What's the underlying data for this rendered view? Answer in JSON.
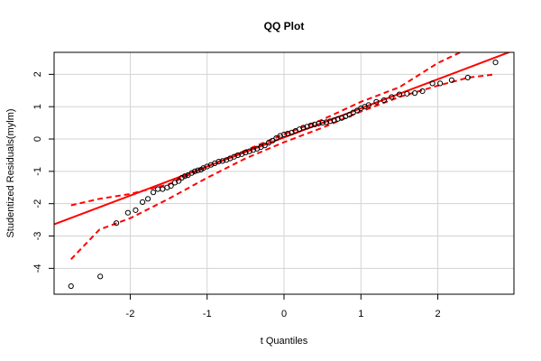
{
  "chart_data": {
    "type": "scatter",
    "title": "QQ Plot",
    "x_label": "t Quantiles",
    "y_label": "Studentized Residuals(mylm)",
    "xlim": [
      -2.99,
      2.99
    ],
    "ylim": [
      -4.8,
      2.68
    ],
    "xticks": [
      -2,
      -1,
      0,
      1,
      2
    ],
    "yticks": [
      -4,
      -3,
      -2,
      -1,
      0,
      1,
      2
    ],
    "grid": true,
    "point_color": "#000000",
    "x": [
      -2.77,
      -2.39,
      -2.18,
      -2.03,
      -1.93,
      -1.84,
      -1.77,
      -1.7,
      -1.64,
      -1.58,
      -1.52,
      -1.47,
      -1.42,
      -1.37,
      -1.33,
      -1.29,
      -1.25,
      -1.2,
      -1.16,
      -1.12,
      -1.08,
      -1.05,
      -1.0,
      -0.95,
      -0.9,
      -0.85,
      -0.8,
      -0.75,
      -0.7,
      -0.65,
      -0.6,
      -0.55,
      -0.5,
      -0.45,
      -0.4,
      -0.35,
      -0.3,
      -0.25,
      -0.2,
      -0.15,
      -0.1,
      -0.05,
      0,
      0.05,
      0.1,
      0.15,
      0.2,
      0.25,
      0.3,
      0.35,
      0.4,
      0.45,
      0.5,
      0.55,
      0.6,
      0.65,
      0.7,
      0.75,
      0.8,
      0.85,
      0.9,
      0.95,
      1.0,
      1.05,
      1.1,
      1.2,
      1.3,
      1.4,
      1.5,
      1.6,
      1.7,
      1.8,
      1.93,
      2.03,
      2.18,
      2.39,
      2.75
    ],
    "values": [
      -4.55,
      -4.25,
      -2.6,
      -2.28,
      -2.2,
      -1.95,
      -1.85,
      -1.65,
      -1.55,
      -1.55,
      -1.5,
      -1.45,
      -1.35,
      -1.3,
      -1.2,
      -1.15,
      -1.12,
      -1.05,
      -1.0,
      -0.97,
      -0.95,
      -0.9,
      -0.85,
      -0.8,
      -0.75,
      -0.7,
      -0.68,
      -0.65,
      -0.6,
      -0.55,
      -0.5,
      -0.47,
      -0.42,
      -0.38,
      -0.34,
      -0.3,
      -0.25,
      -0.2,
      -0.12,
      -0.05,
      0.03,
      0.1,
      0.14,
      0.17,
      0.2,
      0.25,
      0.3,
      0.35,
      0.38,
      0.42,
      0.45,
      0.48,
      0.5,
      0.52,
      0.55,
      0.58,
      0.62,
      0.65,
      0.7,
      0.75,
      0.82,
      0.88,
      0.95,
      1.0,
      1.05,
      1.15,
      1.2,
      1.3,
      1.38,
      1.4,
      1.42,
      1.48,
      1.72,
      1.72,
      1.82,
      1.9,
      2.37
    ],
    "reference_line": {
      "color": "#ff0000",
      "x": [
        -2.99,
        2.99
      ],
      "values": [
        -2.64,
        2.74
      ]
    },
    "envelope_upper": {
      "color": "#ff0000",
      "x": [
        -2.77,
        -2.4,
        -2.0,
        -1.5,
        -1.0,
        -0.5,
        0,
        0.5,
        1.0,
        1.5,
        2.0,
        2.4
      ],
      "values": [
        -2.05,
        -1.85,
        -1.7,
        -1.4,
        -0.85,
        -0.35,
        0.15,
        0.6,
        1.15,
        1.6,
        2.35,
        2.8
      ]
    },
    "envelope_lower": {
      "color": "#ff0000",
      "x": [
        -2.77,
        -2.4,
        -2.0,
        -1.5,
        -1.0,
        -0.5,
        0,
        0.5,
        1.0,
        1.5,
        2.0,
        2.4,
        2.75
      ],
      "values": [
        -3.72,
        -2.8,
        -2.45,
        -1.85,
        -1.2,
        -0.6,
        -0.1,
        0.35,
        0.85,
        1.3,
        1.65,
        1.9,
        2.0
      ]
    }
  }
}
